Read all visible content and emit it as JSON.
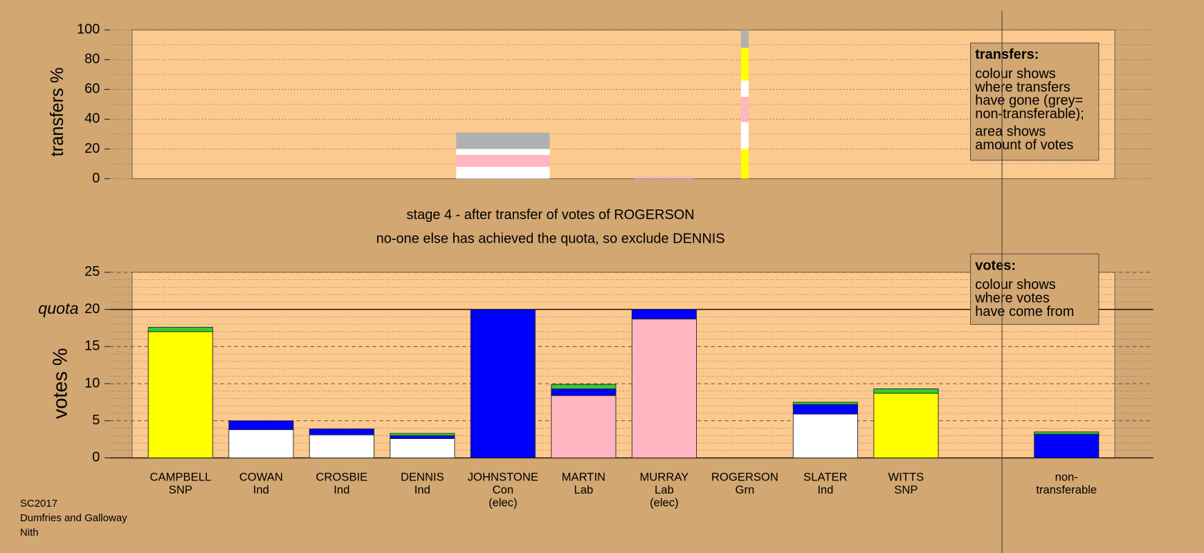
{
  "caption": [
    "stage 4 - after transfer of votes of ROGERSON",
    "no-one else has achieved the quota, so exclude DENNIS"
  ],
  "footer": [
    "SC2017",
    "Dumfries and Galloway",
    "Nith"
  ],
  "chart_data": [
    {
      "type": "bar",
      "stacked": true,
      "ylabel": "transfers %",
      "ylim": [
        0,
        100
      ],
      "yticks": [
        0,
        20,
        40,
        60,
        80,
        100
      ],
      "grid": true,
      "legend": {
        "title": "transfers:",
        "lines": [
          [
            "colour shows",
            "where transfers",
            "have gone (grey=",
            "non-transferable);"
          ],
          [
            "area shows",
            "amount of votes"
          ]
        ]
      },
      "widths": [
        null,
        null,
        null,
        null,
        1.45,
        null,
        0.94,
        0.12,
        null,
        null,
        null
      ],
      "stacks": [
        null,
        null,
        null,
        null,
        [
          {
            "color": "#ffffff",
            "value": 8
          },
          {
            "color": "#ffb6c1",
            "value": 8
          },
          {
            "color": "#ffffff",
            "value": 4
          },
          {
            "color": "#b0b0b0",
            "value": 11
          }
        ],
        null,
        [
          {
            "color": "#ffb6c1",
            "value": 1.5
          }
        ],
        [
          {
            "color": "#ffff00",
            "value": 20
          },
          {
            "color": "#ffffff",
            "value": 18
          },
          {
            "color": "#ffb6c1",
            "value": 17
          },
          {
            "color": "#ffffff",
            "value": 11
          },
          {
            "color": "#ffff00",
            "value": 22
          },
          {
            "color": "#b0b0b0",
            "value": 12
          }
        ],
        null,
        null,
        null
      ]
    },
    {
      "type": "bar",
      "stacked": true,
      "ylabel": "votes %",
      "categories": [
        [
          "CAMPBELL",
          "SNP"
        ],
        [
          "COWAN",
          "Ind"
        ],
        [
          "CROSBIE",
          "Ind"
        ],
        [
          "DENNIS",
          "Ind"
        ],
        [
          "JOHNSTONE",
          "Con",
          "(elec)"
        ],
        [
          "MARTIN",
          "Lab"
        ],
        [
          "MURRAY",
          "Lab",
          "(elec)"
        ],
        [
          "ROGERSON",
          "Grn"
        ],
        [
          "SLATER",
          "Ind"
        ],
        [
          "WITTS",
          "SNP"
        ],
        [
          "non-",
          "transferable"
        ]
      ],
      "series": [
        {
          "color": "#ffff00",
          "values": [
            17.0,
            null,
            null,
            null,
            null,
            null,
            null,
            null,
            null,
            8.7,
            null
          ]
        },
        {
          "color": "#ffffff",
          "values": [
            null,
            3.8,
            3.1,
            2.6,
            null,
            null,
            null,
            null,
            5.9,
            null,
            null
          ]
        },
        {
          "color": "#ffb6c1",
          "values": [
            null,
            null,
            null,
            null,
            null,
            8.4,
            18.7,
            null,
            null,
            null,
            null
          ]
        },
        {
          "color": "#0000ff",
          "values": [
            null,
            1.2,
            0.8,
            0.4,
            20.0,
            0.9,
            1.3,
            null,
            1.3,
            null,
            3.2
          ]
        },
        {
          "color": "#33cc33",
          "values": [
            0.6,
            null,
            null,
            0.3,
            null,
            0.6,
            null,
            null,
            0.3,
            0.6,
            0.3
          ]
        }
      ],
      "ylim": [
        0,
        25
      ],
      "yticks": [
        0,
        5,
        10,
        15,
        20,
        25
      ],
      "grid": true,
      "quota": {
        "value": 20,
        "label": "quota"
      },
      "legend": {
        "title": "votes:",
        "lines": [
          [
            "colour shows",
            "where votes",
            "have come from"
          ]
        ]
      }
    }
  ]
}
